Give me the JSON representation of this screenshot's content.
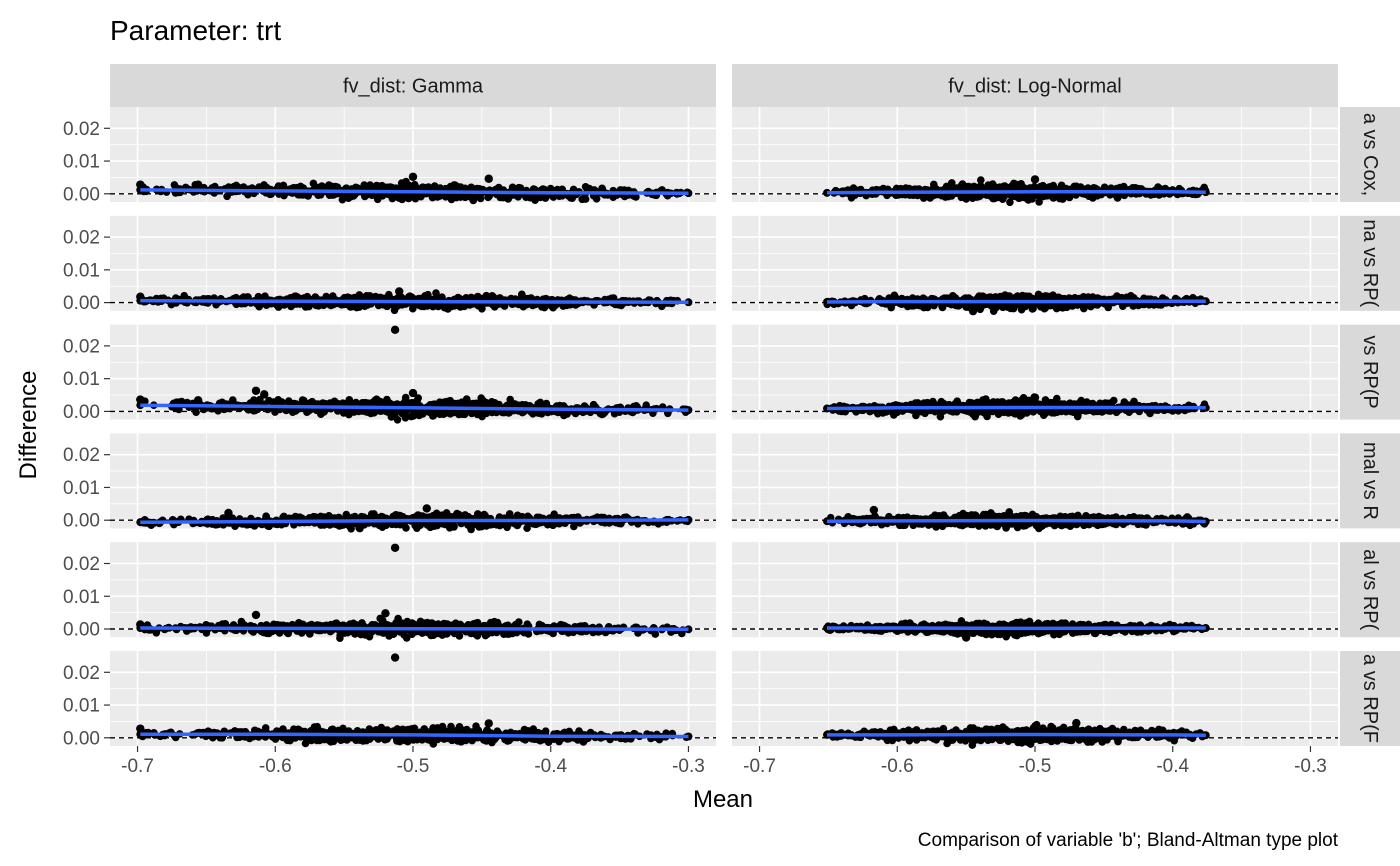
{
  "chart_data": {
    "type": "scatter",
    "title": "Parameter: trt",
    "xlabel": "Mean",
    "ylabel": "Difference",
    "caption": "Comparison of variable 'b'; Bland-Altman type plot",
    "x_ticks": [
      "-0.7",
      "-0.6",
      "-0.5",
      "-0.4",
      "-0.3"
    ],
    "x_tick_values": [
      -0.7,
      -0.6,
      -0.5,
      -0.4,
      -0.3
    ],
    "y_ticks": [
      "0.00",
      "0.01",
      "0.02"
    ],
    "y_tick_values": [
      0.0,
      0.01,
      0.02
    ],
    "xlim": [
      -0.72,
      -0.28
    ],
    "ylim": [
      -0.0025,
      0.0265
    ],
    "grid": true,
    "reference_line": 0,
    "columns": [
      {
        "label": "fv_dist: Gamma",
        "x_range": [
          -0.698,
          -0.3
        ]
      },
      {
        "label": "fv_dist: Log-Normal",
        "x_range": [
          -0.651,
          -0.376
        ]
      }
    ],
    "rows": [
      {
        "label": "a vs Cox,"
      },
      {
        "label": "na vs RP("
      },
      {
        "label": "vs RP(P"
      },
      {
        "label": "mal vs R"
      },
      {
        "label": "al vs RP("
      },
      {
        "label": "a vs RP(F"
      }
    ],
    "panels": [
      [
        {
          "spread": 0.0011,
          "smooth": [
            [
              -0.698,
              0.0012
            ],
            [
              -0.6,
              0.0009
            ],
            [
              -0.5,
              0.0006
            ],
            [
              -0.4,
              0.0003
            ],
            [
              -0.3,
              0.0002
            ]
          ],
          "outliers": [
            [
              -0.698,
              0.0028
            ],
            [
              -0.656,
              0.0028
            ],
            [
              -0.5,
              0.0052
            ],
            [
              -0.445,
              0.0046
            ]
          ]
        },
        {
          "spread": 0.001,
          "smooth": [
            [
              -0.698,
              0.0006
            ],
            [
              -0.6,
              0.0004
            ],
            [
              -0.5,
              0.0003
            ],
            [
              -0.4,
              0.0002
            ],
            [
              -0.3,
              0.0001
            ]
          ],
          "outliers": [
            [
              -0.698,
              0.0018
            ],
            [
              -0.51,
              0.0034
            ],
            [
              -0.62,
              0.0016
            ]
          ]
        },
        {
          "spread": 0.0012,
          "smooth": [
            [
              -0.698,
              0.0019
            ],
            [
              -0.6,
              0.0015
            ],
            [
              -0.5,
              0.0011
            ],
            [
              -0.4,
              0.0007
            ],
            [
              -0.3,
              0.0004
            ]
          ],
          "outliers": [
            [
              -0.513,
              0.0249
            ],
            [
              -0.614,
              0.0063
            ],
            [
              -0.698,
              0.0036
            ],
            [
              -0.656,
              0.0034
            ],
            [
              -0.608,
              0.0052
            ],
            [
              -0.5,
              0.0056
            ]
          ]
        },
        {
          "spread": 0.001,
          "smooth": [
            [
              -0.698,
              -0.0006
            ],
            [
              -0.6,
              -0.0004
            ],
            [
              -0.5,
              -0.0001
            ],
            [
              -0.4,
              -0.0001
            ],
            [
              -0.3,
              0.0001
            ]
          ],
          "outliers": [
            [
              -0.634,
              0.0022
            ],
            [
              -0.49,
              0.0036
            ]
          ]
        },
        {
          "spread": 0.001,
          "smooth": [
            [
              -0.698,
              0.0003
            ],
            [
              -0.6,
              0.0002
            ],
            [
              -0.5,
              0.0001
            ],
            [
              -0.4,
              0.0
            ],
            [
              -0.3,
              -0.0001
            ]
          ],
          "outliers": [
            [
              -0.513,
              0.0248
            ],
            [
              -0.614,
              0.0043
            ],
            [
              -0.52,
              0.0048
            ],
            [
              -0.698,
              0.0014
            ]
          ]
        },
        {
          "spread": 0.0011,
          "smooth": [
            [
              -0.698,
              0.0011
            ],
            [
              -0.6,
              0.0011
            ],
            [
              -0.5,
              0.0009
            ],
            [
              -0.4,
              0.0005
            ],
            [
              -0.3,
              0.0004
            ]
          ],
          "outliers": [
            [
              -0.513,
              0.0245
            ],
            [
              -0.698,
              0.0028
            ],
            [
              -0.445,
              0.0044
            ]
          ]
        }
      ],
      [
        {
          "spread": 0.0011,
          "smooth": [
            [
              -0.651,
              0.0003
            ],
            [
              -0.6,
              0.0005
            ],
            [
              -0.5,
              0.0006
            ],
            [
              -0.4,
              0.0006
            ],
            [
              -0.376,
              0.0005
            ]
          ],
          "outliers": [
            [
              -0.5,
              0.0044
            ]
          ]
        },
        {
          "spread": 0.001,
          "smooth": [
            [
              -0.651,
              0.0002
            ],
            [
              -0.6,
              0.0003
            ],
            [
              -0.5,
              0.0003
            ],
            [
              -0.4,
              0.0004
            ],
            [
              -0.376,
              0.0004
            ]
          ],
          "outliers": [
            [
              -0.545,
              -0.0026
            ]
          ]
        },
        {
          "spread": 0.0011,
          "smooth": [
            [
              -0.651,
              0.0009
            ],
            [
              -0.6,
              0.0011
            ],
            [
              -0.5,
              0.0012
            ],
            [
              -0.4,
              0.0012
            ],
            [
              -0.376,
              0.0011
            ]
          ],
          "outliers": [
            [
              -0.5,
              0.0042
            ]
          ]
        },
        {
          "spread": 0.001,
          "smooth": [
            [
              -0.651,
              -0.0003
            ],
            [
              -0.6,
              -0.0002
            ],
            [
              -0.5,
              -0.0001
            ],
            [
              -0.4,
              -0.0002
            ],
            [
              -0.376,
              -0.0004
            ]
          ],
          "outliers": [
            [
              -0.617,
              0.0031
            ]
          ]
        },
        {
          "spread": 0.0009,
          "smooth": [
            [
              -0.651,
              0.0003
            ],
            [
              -0.6,
              0.0003
            ],
            [
              -0.5,
              0.0002
            ],
            [
              -0.4,
              0.0003
            ],
            [
              -0.376,
              0.0003
            ]
          ],
          "outliers": [
            [
              -0.55,
              -0.0026
            ]
          ]
        },
        {
          "spread": 0.0011,
          "smooth": [
            [
              -0.651,
              0.0009
            ],
            [
              -0.6,
              0.0009
            ],
            [
              -0.5,
              0.001
            ],
            [
              -0.4,
              0.0009
            ],
            [
              -0.376,
              0.0008
            ]
          ],
          "outliers": [
            [
              -0.47,
              0.0045
            ]
          ]
        }
      ]
    ],
    "colors": {
      "panel_bg": "#ebebeb",
      "strip_bg": "#d9d9d9",
      "grid": "#ffffff",
      "points": "#000000",
      "smooth": "#3366ff",
      "reference": "#000000"
    }
  }
}
